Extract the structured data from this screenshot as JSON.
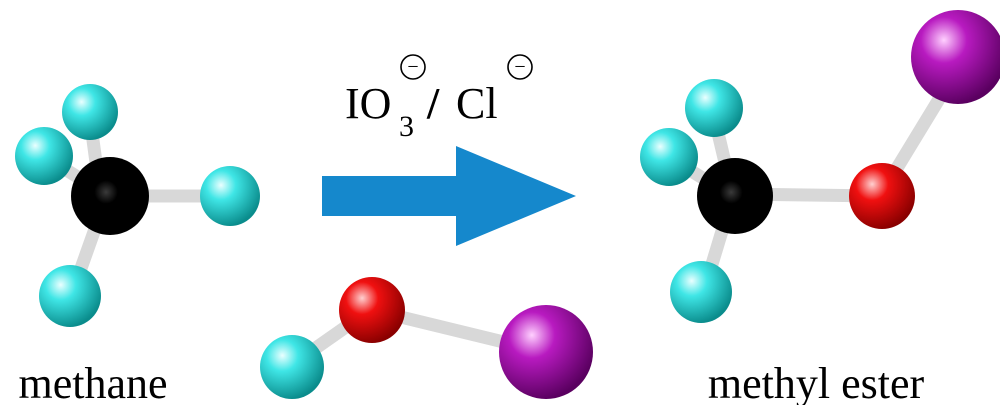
{
  "reagent": {
    "iodate": "IO",
    "subscript": "3",
    "separator": "/",
    "chloride": "Cl",
    "charge_symbol": "−"
  },
  "labels": {
    "left": "methane",
    "right": "methyl ester"
  },
  "colors": {
    "hydrogen": "#19d6d6",
    "carbon": "#000000",
    "oxygen": "#e00000",
    "iodine": "#a000a8",
    "bond": "#d8d8d8",
    "arrow": "#1588cc"
  },
  "atoms_legend": [
    "hydrogen-atom",
    "carbon-atom",
    "oxygen-atom",
    "iodine-atom"
  ]
}
